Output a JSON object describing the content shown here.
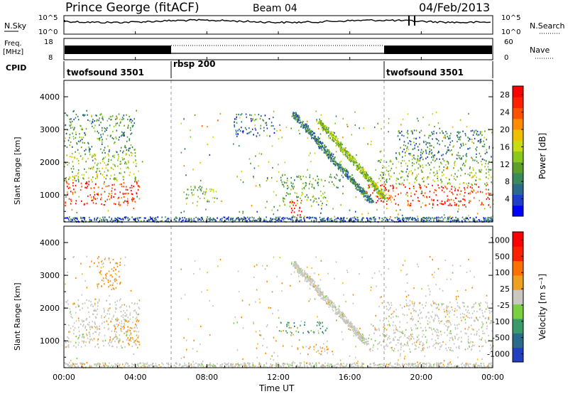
{
  "header": {
    "station": "Prince George (fitACF)",
    "beam": "Beam 04",
    "date": "04/Feb/2013"
  },
  "panels": {
    "nsky": {
      "label": "N.Sky",
      "tick_top": "10^5",
      "tick_bottom": "10^0",
      "right_tick_top": "10^5",
      "right_tick_bottom": "10^0",
      "right_label": "N.Search"
    },
    "freq": {
      "label_line1": "Freq.",
      "label_line2": "[MHz]",
      "tick_top": "18",
      "tick_bottom": "8",
      "right_tick_top": "60",
      "right_tick_bottom": "0",
      "right_label": "Nave"
    },
    "cpid": {
      "label": "CPID",
      "segments": [
        {
          "name": "twofsound 3501",
          "start_h": 0,
          "end_h": 6
        },
        {
          "name": "rbsp 200",
          "start_h": 6,
          "end_h": 18
        },
        {
          "name": "twofsound 3501",
          "start_h": 18,
          "end_h": 24
        }
      ]
    }
  },
  "chart_data": [
    {
      "type": "heatmap",
      "title": "Power",
      "ylabel": "Slant Range [km]",
      "xlabel": "Time UT",
      "x_ticks": [
        "00:00",
        "04:00",
        "08:00",
        "12:00",
        "16:00",
        "20:00",
        "00:00"
      ],
      "y_ticks": [
        "1000",
        "2000",
        "3000",
        "4000"
      ],
      "xlim_hours": [
        0,
        24
      ],
      "ylim_km": [
        180,
        4500
      ],
      "colorbar": {
        "label": "Power [dB]",
        "ticks": [
          "4",
          "8",
          "12",
          "16",
          "20",
          "24",
          "28"
        ],
        "range": [
          0,
          30
        ],
        "colors": [
          "#0000ff",
          "#1f3fc8",
          "#2a6a8a",
          "#3a8a5a",
          "#5aa02a",
          "#8ac820",
          "#c8dc10",
          "#f0c000",
          "#ff8c00",
          "#ff5000",
          "#ff2000",
          "#ff0000"
        ]
      },
      "regions": [
        {
          "t0": 0.0,
          "t1": 4.2,
          "r0": 700,
          "r1": 1450,
          "value": 26
        },
        {
          "t0": 0.0,
          "t1": 4.2,
          "r0": 1450,
          "r1": 2300,
          "value": 14
        },
        {
          "t0": 0.0,
          "t1": 4.0,
          "r0": 2300,
          "r1": 3500,
          "value": 9
        },
        {
          "t0": 6.8,
          "t1": 8.6,
          "r0": 800,
          "r1": 1300,
          "value": 12
        },
        {
          "t0": 9.5,
          "t1": 11.8,
          "r0": 2800,
          "r1": 3500,
          "value": 6
        },
        {
          "t0": 12.0,
          "t1": 15.6,
          "r0": 1200,
          "r1": 1650,
          "value": 10
        },
        {
          "t0": 12.2,
          "t1": 14.8,
          "r0": 700,
          "r1": 1100,
          "value": 12
        },
        {
          "t0": 12.6,
          "t1": 13.3,
          "r0": 300,
          "r1": 900,
          "value": 28
        },
        {
          "t0": 17.0,
          "t1": 24.0,
          "r0": 700,
          "r1": 1350,
          "value": 26
        },
        {
          "t0": 17.5,
          "t1": 24.0,
          "r0": 1350,
          "r1": 2100,
          "value": 13
        },
        {
          "t0": 18.5,
          "t1": 24.0,
          "r0": 2100,
          "r1": 3000,
          "value": 8
        }
      ],
      "streaks": [
        {
          "t0": 12.8,
          "r0": 3500,
          "t1": 17.2,
          "r1": 800,
          "value": 8
        },
        {
          "t0": 14.2,
          "r0": 3300,
          "t1": 18.0,
          "r1": 900,
          "value": 14
        }
      ]
    },
    {
      "type": "heatmap",
      "title": "Velocity",
      "ylabel": "Slant Range [km]",
      "xlabel": "Time UT",
      "x_ticks": [
        "00:00",
        "04:00",
        "08:00",
        "12:00",
        "16:00",
        "20:00",
        "00:00"
      ],
      "y_ticks": [
        "1000",
        "2000",
        "3000",
        "4000"
      ],
      "xlim_hours": [
        0,
        24
      ],
      "ylim_km": [
        180,
        4500
      ],
      "colorbar": {
        "label": "Velocity [m s^-1]",
        "ticks": [
          "1000",
          "500",
          "100",
          "25",
          "-25",
          "-100",
          "-500",
          "-1000"
        ],
        "colors": [
          "#2040c0",
          "#2a6a8a",
          "#3a9a6a",
          "#7ad040",
          "#c8c8c0",
          "#f0a020",
          "#ff7000",
          "#ff2000",
          "#ff0000"
        ]
      },
      "regions": [
        {
          "t0": 0.0,
          "t1": 4.2,
          "r0": 800,
          "r1": 2300,
          "value": "gray"
        },
        {
          "t0": 2.8,
          "t1": 4.2,
          "r0": 900,
          "r1": 1700,
          "value": "orange"
        },
        {
          "t0": 1.8,
          "t1": 3.2,
          "r0": 2600,
          "r1": 3600,
          "value": "orange"
        },
        {
          "t0": 12.0,
          "t1": 14.8,
          "r0": 1250,
          "r1": 1600,
          "value": "green"
        },
        {
          "t0": 13.0,
          "t1": 15.0,
          "r0": 600,
          "r1": 850,
          "value": "orange"
        },
        {
          "t0": 17.0,
          "t1": 24.0,
          "r0": 700,
          "r1": 1500,
          "value": "gray"
        },
        {
          "t0": 18.0,
          "t1": 24.0,
          "r0": 1500,
          "r1": 2200,
          "value": "gray"
        }
      ],
      "streaks": [
        {
          "t0": 12.8,
          "r0": 3400,
          "t1": 17.0,
          "r1": 900,
          "value": "gray"
        }
      ]
    }
  ]
}
